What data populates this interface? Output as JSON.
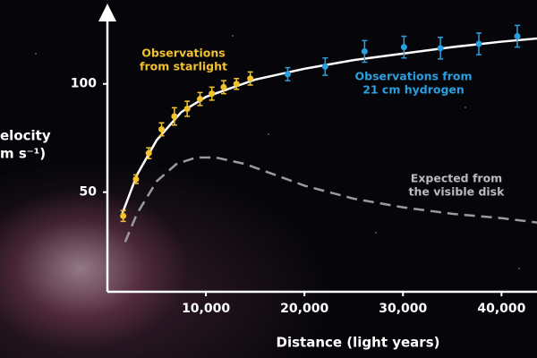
{
  "chart_data": {
    "type": "scatter",
    "y_label": [
      "elocity",
      "m s⁻¹)"
    ],
    "x_label": "Distance (light years)",
    "xlim": [
      0,
      43600
    ],
    "ylim": [
      4,
      128
    ],
    "xticks": [
      {
        "value": 10000,
        "label": "10,000"
      },
      {
        "value": 20000,
        "label": "20,000"
      },
      {
        "value": 30000,
        "label": "30,000"
      },
      {
        "value": 40000,
        "label": "40,000"
      }
    ],
    "yticks": [
      50,
      100
    ],
    "series": [
      {
        "name": "Observations from starlight",
        "color": "#f2c12e",
        "x": [
          1600,
          2900,
          4200,
          5500,
          6800,
          8100,
          9400,
          10600,
          11800,
          13100,
          14500
        ],
        "values": [
          39,
          56,
          68,
          79,
          85,
          88.5,
          93,
          95.5,
          98.5,
          100,
          102.5
        ],
        "errors": [
          2.5,
          2,
          2.5,
          3,
          4,
          3.5,
          3,
          3,
          3,
          2.5,
          3
        ]
      },
      {
        "name": "Observations from 21 cm hydrogen",
        "color": "#2a9fe0",
        "x": [
          18300,
          22100,
          26100,
          30100,
          33800,
          37700,
          41600
        ],
        "values": [
          104.5,
          108,
          115,
          117,
          116.5,
          118.5,
          122
        ],
        "errors": [
          3,
          4,
          5,
          5,
          5,
          5,
          5
        ]
      }
    ],
    "fit": {
      "color": "#ffffff",
      "x": [
        1500,
        3000,
        5000,
        7500,
        10000,
        15000,
        20000,
        25000,
        30000,
        35000,
        40000,
        43600
      ],
      "values": [
        40,
        58,
        74,
        87,
        94,
        102,
        107,
        111,
        114,
        117,
        119.5,
        121
      ]
    },
    "expected": {
      "color": "#9a9a9a",
      "x": [
        1800,
        3000,
        5000,
        7000,
        9000,
        11000,
        14000,
        17000,
        20000,
        25000,
        30000,
        35000,
        40000,
        43600
      ],
      "values": [
        27,
        40,
        55,
        63,
        66,
        66,
        63,
        58,
        53,
        47,
        43,
        40,
        38,
        36
      ]
    },
    "annotations": [
      {
        "lines": [
          "Observations",
          "from starlight"
        ],
        "color": "#f2c12e"
      },
      {
        "lines": [
          "Observations from",
          "21 cm hydrogen"
        ],
        "color": "#2a9fe0"
      },
      {
        "lines": [
          "Expected from",
          "the visible disk"
        ],
        "color": "#bbbbbb"
      }
    ]
  }
}
